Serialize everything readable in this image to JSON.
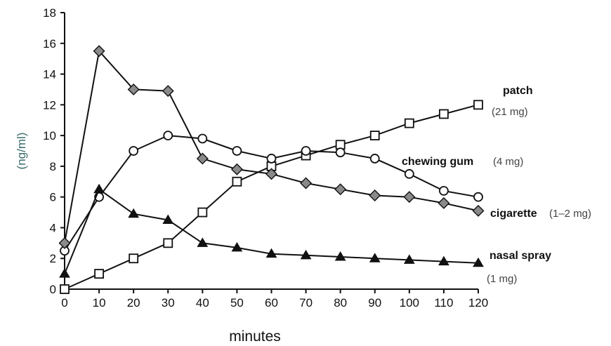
{
  "chart_data": {
    "type": "line",
    "xlabel": "minutes",
    "ylabel": "(ng/ml)",
    "xlim": [
      0,
      120
    ],
    "ylim": [
      0,
      18
    ],
    "x_ticks": [
      0,
      10,
      20,
      30,
      40,
      50,
      60,
      70,
      80,
      90,
      100,
      110,
      120
    ],
    "y_ticks": [
      0,
      2,
      4,
      6,
      8,
      10,
      12,
      14,
      16,
      18
    ],
    "grid": false,
    "legend": "inline labels at right end of lines",
    "series": [
      {
        "key": "patch",
        "name": "patch",
        "dose": "(21 mg)",
        "marker": "open-square",
        "x": [
          0,
          10,
          20,
          30,
          40,
          50,
          60,
          70,
          80,
          90,
          100,
          110,
          120
        ],
        "y": [
          0,
          1.0,
          2.0,
          3.0,
          5.0,
          7.0,
          8.0,
          8.7,
          9.4,
          10.0,
          10.8,
          11.4,
          12.0
        ]
      },
      {
        "key": "chewing_gum",
        "name": "chewing gum",
        "dose": "(4 mg)",
        "marker": "open-circle",
        "x": [
          0,
          10,
          20,
          30,
          40,
          50,
          60,
          70,
          80,
          90,
          100,
          110,
          120
        ],
        "y": [
          2.5,
          6.0,
          9.0,
          10.0,
          9.8,
          9.0,
          8.5,
          9.0,
          8.9,
          8.5,
          7.5,
          6.4,
          6.0
        ]
      },
      {
        "key": "cigarette",
        "name": "cigarette",
        "dose": "(1–2 mg)",
        "marker": "gray-diamond",
        "x": [
          0,
          10,
          20,
          30,
          40,
          50,
          60,
          70,
          80,
          90,
          100,
          110,
          120
        ],
        "y": [
          3.0,
          15.5,
          13.0,
          12.9,
          8.5,
          7.8,
          7.5,
          6.9,
          6.5,
          6.1,
          6.0,
          5.6,
          5.1
        ]
      },
      {
        "key": "nasal_spray",
        "name": "nasal spray",
        "dose": "(1 mg)",
        "marker": "filled-triangle",
        "x": [
          0,
          10,
          20,
          30,
          40,
          50,
          60,
          70,
          80,
          90,
          100,
          110,
          120
        ],
        "y": [
          1.0,
          6.5,
          4.9,
          4.5,
          3.0,
          2.7,
          2.3,
          2.2,
          2.1,
          2.0,
          1.9,
          1.8,
          1.7
        ]
      }
    ],
    "colors": {
      "line": "#111111",
      "diamond_fill": "#8a8a8a",
      "dose_text": "#444444",
      "ylabel_text": "#3b6b6b"
    }
  }
}
